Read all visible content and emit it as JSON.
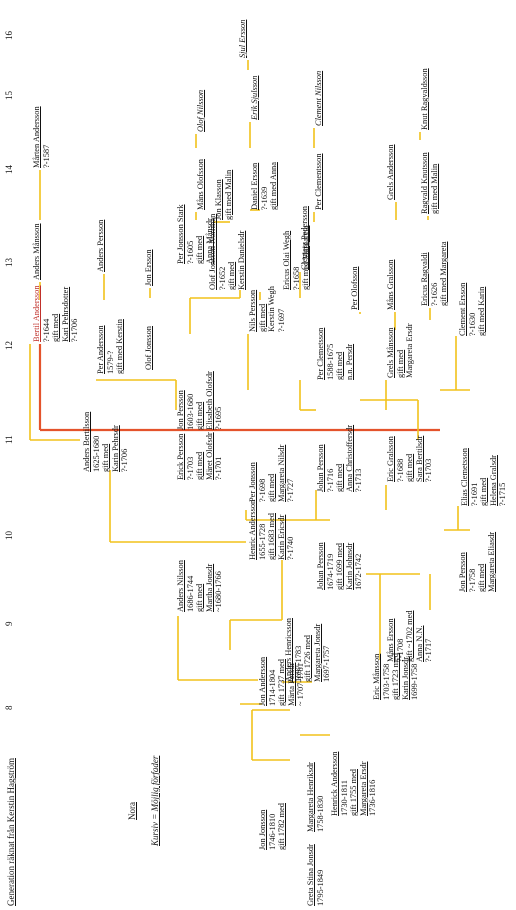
{
  "title": "Generation räknat från Kerstin Hagström",
  "generations": [
    "8",
    "9",
    "10",
    "11",
    "12",
    "13",
    "14",
    "15",
    "16"
  ],
  "legend": {
    "place": "Nora",
    "mark_key": "Kursiv = Möjlig förfader"
  },
  "colors": {
    "line": "#f2c21a",
    "spouse_line": "#e4532b",
    "highlight": "#c0302a",
    "text": "#111111"
  },
  "people": {
    "jon_jonsson": {
      "name": "Jon Jonsson",
      "lines": [
        "1746-1810",
        "gift 1782 med"
      ]
    },
    "greta_jonsdr": {
      "name": "Greta Stina Jonsdr",
      "lines": [
        "1795-1849"
      ]
    },
    "margareta_henriksdr": {
      "name": "Margareta Henriksdr",
      "lines": [
        "1758-1830"
      ]
    },
    "jon_andersson": {
      "name": "Jon Andersson",
      "lines": [
        "1714-1804",
        "gift 1737 med",
        "Märta Persdr",
        "~ 1707-1781"
      ]
    },
    "henrick_andersson_8": {
      "name": "Henrick Andersson",
      "lines": [
        "1730-1811",
        "gift 1755 med",
        "Margareta Ersdr",
        "1736-1816"
      ]
    },
    "anders_nilsson": {
      "name": "Anders Nilsson",
      "lines": [
        "1686-1744",
        "gift med",
        "Martha Jonsdr",
        "~1680-1766"
      ]
    },
    "anders_henricsson": {
      "name": "Anders Henricsson",
      "lines": [
        "1697-1783",
        "gift 1726 med",
        "Margareta Jonsdr",
        "1697-1757"
      ]
    },
    "eric_mansson": {
      "name": "Eric Månsson",
      "lines": [
        "1703-1758",
        "gift 1723 med",
        "Karin Jonsdr",
        "1699-1758"
      ]
    },
    "henric_andersson": {
      "name": "Henric Andersson",
      "lines": [
        "1655-1728",
        "gift 1683 med",
        "Karin Ericsdr",
        "?-1740"
      ]
    },
    "johan_persson_10": {
      "name": "Johan Persson",
      "lines": [
        "1674-1719",
        "gift 1699 med",
        "Karin Johnsdr",
        "1672-1742"
      ]
    },
    "mans_ersson": {
      "name": "Måns Ersson",
      "lines": [
        "?-1708",
        "gift ~1702 med",
        "Anna N.N.",
        "?-1717"
      ]
    },
    "jon_persson_10": {
      "name": "Jon Persson",
      "lines": [
        "?-1758",
        "gift med",
        "Margareta Eliasdr"
      ]
    },
    "anders_bertilsson": {
      "name": "Anders Bertilsson",
      "lines": [
        "1625-1680",
        "gift med",
        "Karin Pehrsdr",
        "?-1706"
      ]
    },
    "erick_persson": {
      "name": "Erick Persson",
      "lines": [
        "?-1703",
        "gift med",
        "Märet Olofsdr",
        "?-1701"
      ]
    },
    "per_jonsson": {
      "name": "Per Jonsson",
      "lines": [
        "?-1698",
        "gift med",
        "Margareta Nilsdr",
        "?-1727"
      ]
    },
    "johan_persson_11": {
      "name": "Johan Persson",
      "lines": [
        "?-1716",
        "gift med",
        "Anna Christoffersdr",
        "?-1713"
      ]
    },
    "eric_gralsson": {
      "name": "Eric Gralsson",
      "lines": [
        "?-1688",
        "gift med",
        "Sara Bertilsdr",
        "?-1703"
      ]
    },
    "elias_clemetsson": {
      "name": "Elias Clemetsson",
      "lines": [
        "?-1691",
        "gift med",
        "Helena Gralsdr",
        "?-1715"
      ]
    },
    "bertil_andersson": {
      "name": "Bertil Andersson",
      "lines": [
        "?-1644",
        "gift med",
        "Kari Pehrsdotter",
        "?-1706"
      ]
    },
    "per_andersson": {
      "name": "Per Andersson",
      "lines": [
        "1579-?",
        "gift med Kerstin"
      ]
    },
    "olof_jonsson": {
      "name": "Olof Jonsson",
      "lines": []
    },
    "jon_persson_12": {
      "name": "Jon Persson",
      "lines": [
        "1603-1680",
        "gift med",
        "Elisabeth Olofsdr",
        "?-1695"
      ]
    },
    "nils_persson": {
      "name": "Nils Persson",
      "lines": [
        "gift med",
        "Kerstin Wegh",
        "?-1697"
      ]
    },
    "per_clemetsson": {
      "name": "Per Clemetsson",
      "lines": [
        "1588-1675",
        "gift med",
        "n.n. Persdr"
      ]
    },
    "grels_mansson": {
      "name": "Grels Månsson",
      "lines": [
        "gift med",
        "Margareta Ersdr"
      ]
    },
    "clement_ersson": {
      "name": "Clement Ersson",
      "lines": [
        "?-1630",
        "gift med Karin"
      ]
    },
    "anders_mansson": {
      "name": "Anders Månsson",
      "lines": []
    },
    "anders_persson": {
      "name": "Anders Persson",
      "lines": []
    },
    "jon_ersson": {
      "name": "Jon Ersson",
      "lines": []
    },
    "per_jonsson_stark": {
      "name": "Per Jonsson Stark",
      "lines": [
        "?-1605",
        "gift med",
        "Anna Månsdr"
      ]
    },
    "olof_jonsson_norrman": {
      "name": "Olof Jonsson Norrman",
      "lines": [
        "?-1652",
        "gift med",
        "Kerstin Danielsdr"
      ]
    },
    "ericus_olai_wegh": {
      "name": "Ericus Olai Wegh",
      "lines": [
        "?-1658",
        "gift med Margareta"
      ]
    },
    "clemetz_pedersson": {
      "name": "Clemetz Pedersson",
      "lines": []
    },
    "per_olofsson": {
      "name": "Per Olofsson",
      "lines": []
    },
    "mans_gralsson": {
      "name": "Måns Gralsson",
      "lines": []
    },
    "ericus_ragvaldi": {
      "name": "Ericus Ragvaldi",
      "lines": [
        "?-1626",
        "gift med Margareta"
      ]
    },
    "marten_andersson": {
      "name": "Mårten Andersson",
      "lines": [
        "?-1587"
      ]
    },
    "mans_olofsson": {
      "name": "Måns Olofsson",
      "lines": []
    },
    "jon_klasson": {
      "name": "Jon Klasson",
      "lines": [
        "gift med Malin"
      ]
    },
    "daniel_ersson": {
      "name": "Daniel Ersson",
      "lines": [
        "?-1639",
        "gift med Anna"
      ]
    },
    "per_clementsson": {
      "name": "Per Clementsson",
      "lines": []
    },
    "grels_andersson": {
      "name": "Grels Andersson",
      "lines": []
    },
    "ragvald_knutsson": {
      "name": "Ragvald Knutsson",
      "lines": [
        "gift med Malin"
      ]
    },
    "olof_nilsson": {
      "name": "Olof Nilsson",
      "lines": []
    },
    "erik_sjulsson": {
      "name": "Erik Sjulsson",
      "lines": []
    },
    "clement_nilsson": {
      "name": "Clement Nilsson",
      "lines": []
    },
    "knut_ragvaldsson": {
      "name": "Knut Ragvaldsson",
      "lines": []
    },
    "sjul_ersson": {
      "name": "Sjul Ersson",
      "lines": []
    }
  }
}
